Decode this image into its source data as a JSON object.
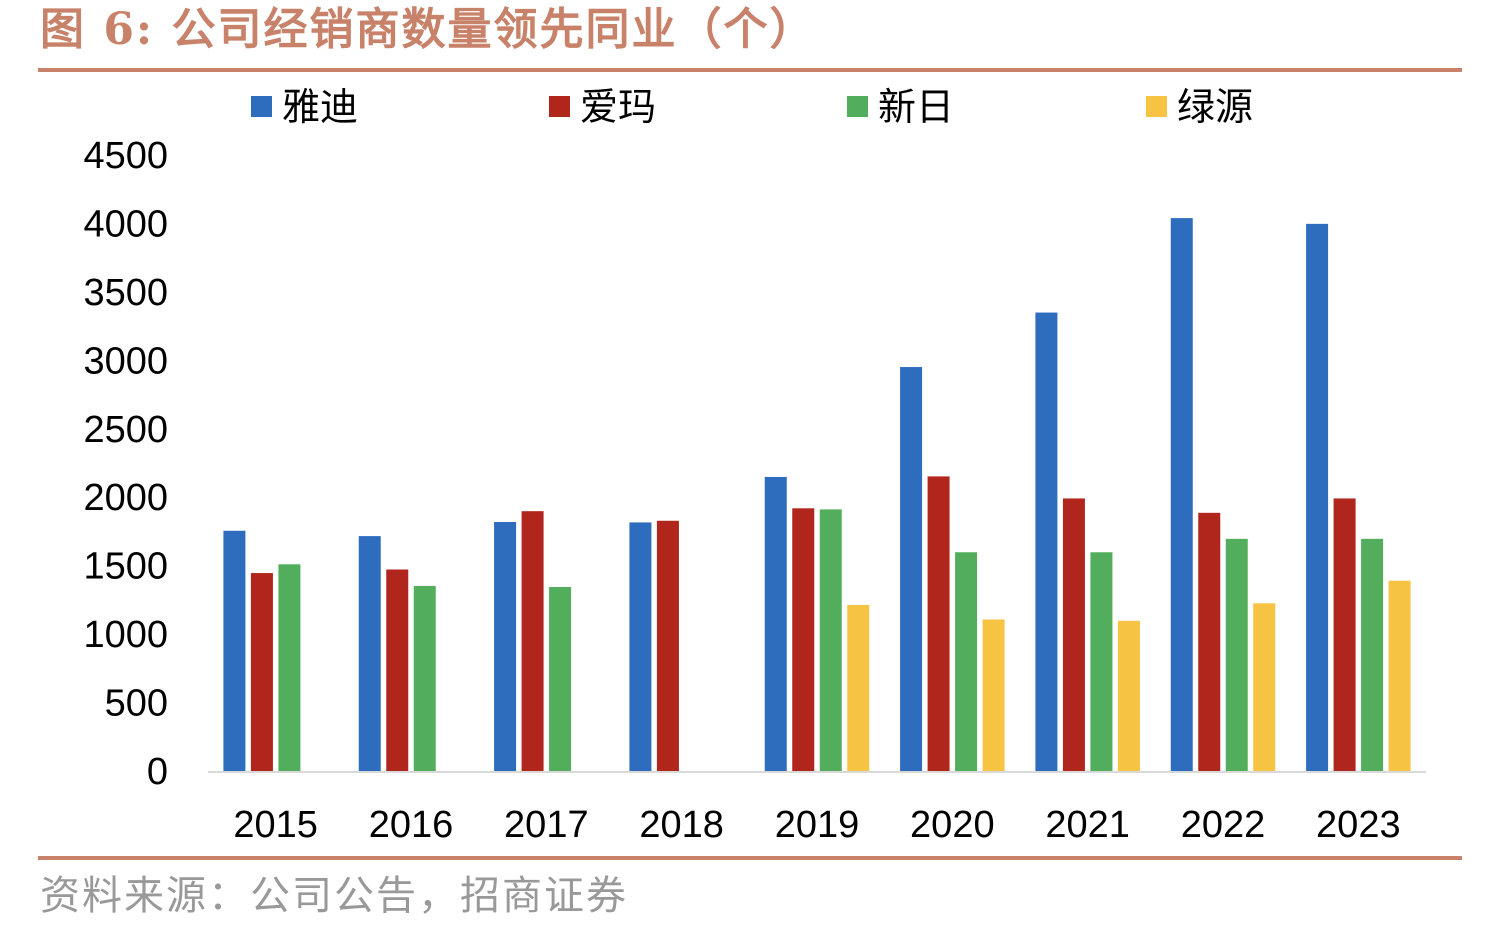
{
  "figure": {
    "title": "图 6:  公司经销商数量领先同业（个）",
    "source": "资料来源：公司公告，招商证券"
  },
  "chart_data": {
    "type": "bar",
    "title": "公司经销商数量领先同业（个）",
    "xlabel": "",
    "ylabel": "",
    "ylim": [
      0,
      4500
    ],
    "yticks": [
      0,
      500,
      1000,
      1500,
      2000,
      2500,
      3000,
      3500,
      4000,
      4500
    ],
    "grid": false,
    "legend_position": "top",
    "categories": [
      "2015",
      "2016",
      "2017",
      "2018",
      "2019",
      "2020",
      "2021",
      "2022",
      "2023"
    ],
    "series": [
      {
        "name": "雅迪",
        "color": "#2E6DBE",
        "values": [
          1755,
          1716,
          1819,
          1816,
          2148,
          2951,
          3349,
          4039,
          3997
        ]
      },
      {
        "name": "爱玛",
        "color": "#B0251C",
        "values": [
          1446,
          1472,
          1898,
          1828,
          1919,
          2152,
          1991,
          1886,
          1991
        ]
      },
      {
        "name": "新日",
        "color": "#52AE5C",
        "values": [
          1510,
          1352,
          1344,
          null,
          1911,
          1598,
          1598,
          1696,
          1696
        ]
      },
      {
        "name": "绿源",
        "color": "#F6C342",
        "values": [
          null,
          null,
          null,
          null,
          1213,
          1107,
          1097,
          1225,
          1390
        ]
      }
    ]
  }
}
